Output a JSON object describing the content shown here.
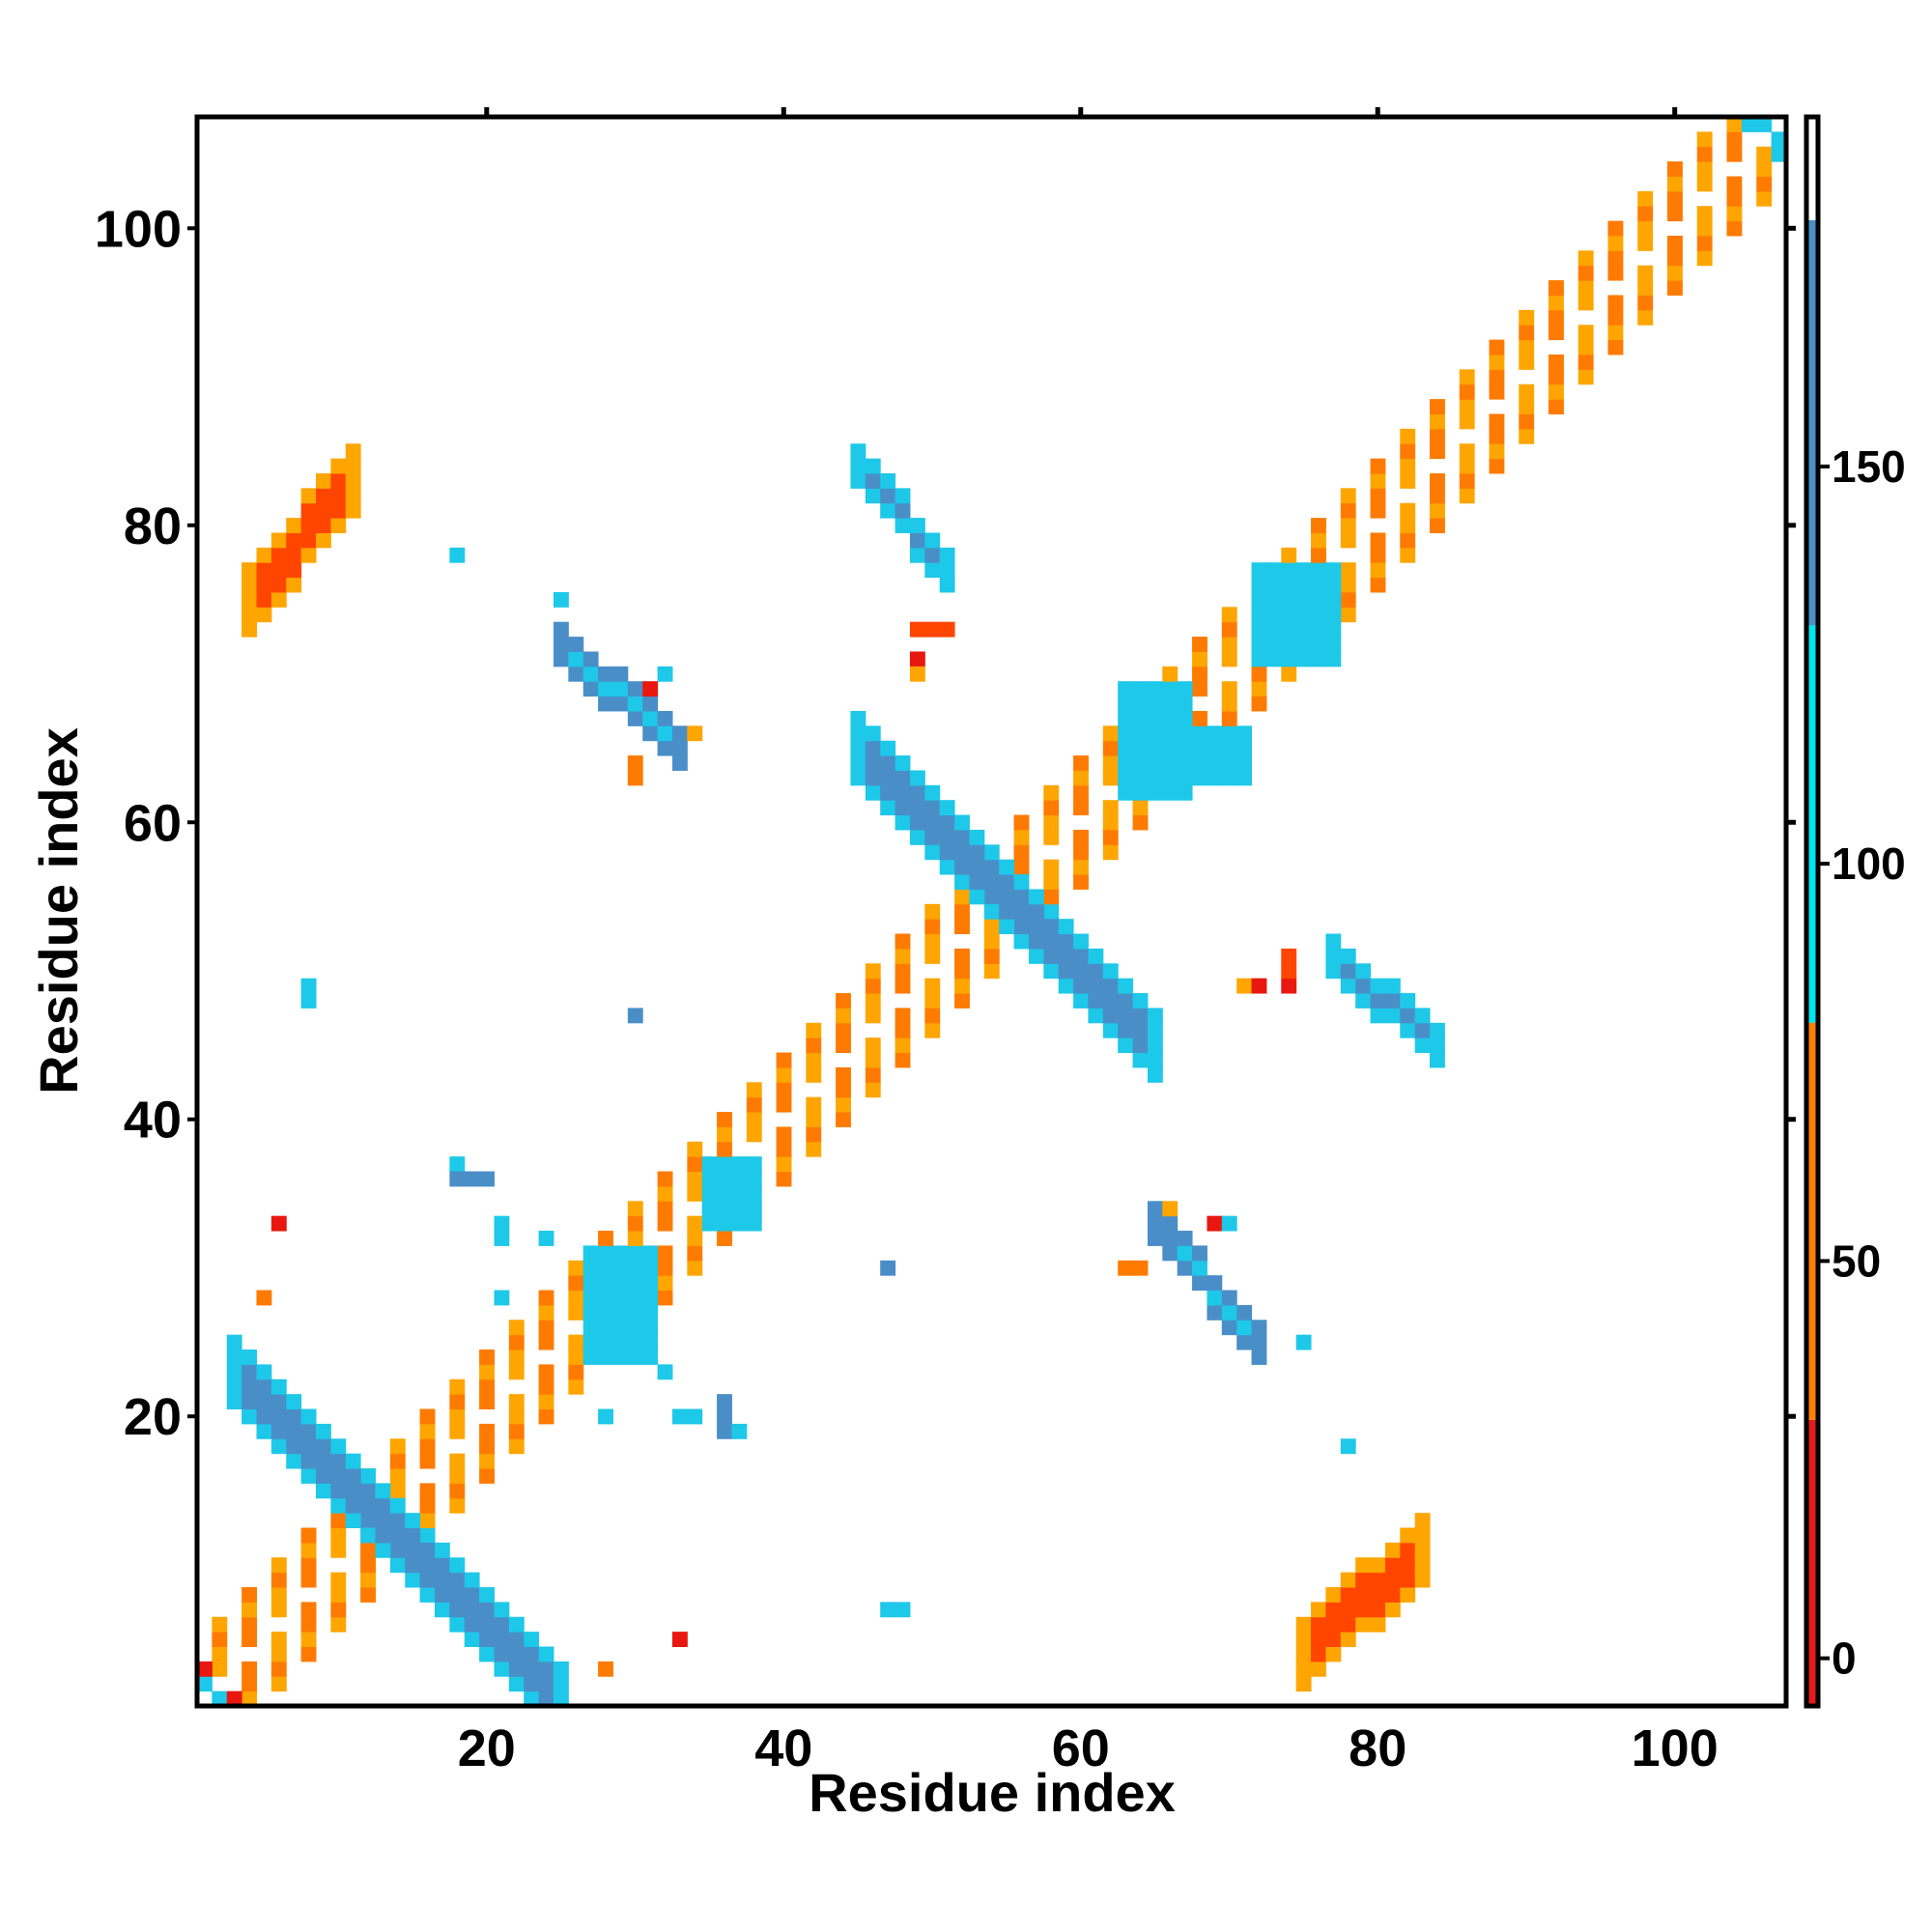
{
  "chart_data": {
    "type": "heatmap",
    "title": "",
    "xlabel": "Residue index",
    "ylabel": "Residue index",
    "xlim": [
      0.5,
      107.5
    ],
    "ylim": [
      0.5,
      107.5
    ],
    "x_ticks": [
      20,
      40,
      60,
      80,
      100
    ],
    "y_ticks": [
      20,
      40,
      60,
      80,
      100
    ],
    "grid": false,
    "colorbar": {
      "range": [
        -6,
        194
      ],
      "ticks": [
        0,
        50,
        100,
        150
      ],
      "bands": [
        {
          "from": -6,
          "to": 30,
          "color": "#e41a1c"
        },
        {
          "from": 30,
          "to": 80,
          "color": "#ff7f00"
        },
        {
          "from": 80,
          "to": 130,
          "color": "#00e5ee"
        },
        {
          "from": 130,
          "to": 181,
          "color": "#4a90c4"
        },
        {
          "from": 181,
          "to": 194,
          "color": "#ffffff"
        }
      ]
    },
    "palette": {
      "red": "#e8170f",
      "red_orange": "#ff4500",
      "orange": "#ff7a00",
      "amber": "#ffa500",
      "cyan": "#00e5ee",
      "sky": "#1ec8e8",
      "steel": "#4a8ec8"
    },
    "cell_groups": [
      {
        "name": "diagonal-band",
        "pattern": "checker",
        "x0": 1,
        "x1": 107,
        "offset_min": -4,
        "offset_max": 4,
        "colors": [
          "red",
          "orange",
          "red_orange",
          "amber"
        ]
      },
      {
        "name": "hairpin-antidiagonal-1",
        "pattern": "antidiagonal",
        "sum": 26,
        "x0": 3,
        "x1": 25,
        "width": 2,
        "color": "steel",
        "edge_color": "sky"
      },
      {
        "name": "hairpin-antidiagonal-2",
        "pattern": "antidiagonal",
        "sum": 110,
        "x0": 45,
        "x1": 65,
        "width": 2,
        "color": "steel",
        "edge_color": "sky"
      },
      {
        "name": "cluster-upper-left",
        "pattern": "band",
        "x0": 4,
        "x1": 11,
        "y0": 75,
        "y1": 83,
        "slope": 1,
        "width": 4,
        "color": "red_orange",
        "edge_color": "amber"
      },
      {
        "name": "cluster-lower-right",
        "pattern": "band",
        "x0": 75,
        "x1": 83,
        "y0": 4,
        "y1": 11,
        "slope": 1,
        "width": 4,
        "color": "red_orange",
        "edge_color": "amber"
      },
      {
        "name": "strand-pair-a",
        "pattern": "band",
        "x0": 45,
        "x1": 51,
        "y0": 77,
        "y1": 84,
        "slope": -1,
        "width": 3,
        "color": "steel",
        "edge_color": "sky"
      },
      {
        "name": "strand-pair-b",
        "pattern": "band",
        "x0": 77,
        "x1": 84,
        "y0": 45,
        "y1": 51,
        "slope": -1,
        "width": 3,
        "color": "steel",
        "edge_color": "sky"
      },
      {
        "name": "cluster-mid-left",
        "pattern": "band",
        "x0": 25,
        "x1": 33,
        "y0": 65,
        "y1": 72,
        "slope": -1,
        "width": 3,
        "color": "sky",
        "edge_color": "steel"
      },
      {
        "name": "cluster-mid-right",
        "pattern": "band",
        "x0": 65,
        "x1": 72,
        "y0": 25,
        "y1": 33,
        "slope": -1,
        "width": 3,
        "color": "sky",
        "edge_color": "steel"
      },
      {
        "name": "side-cluster-1",
        "pattern": "block",
        "x0": 63,
        "x1": 67,
        "y0": 62,
        "y1": 69,
        "color": "sky"
      },
      {
        "name": "side-cluster-2",
        "pattern": "block",
        "x0": 68,
        "x1": 71,
        "y0": 63,
        "y1": 66,
        "color": "sky"
      },
      {
        "name": "side-cluster-3",
        "pattern": "block",
        "x0": 72,
        "x1": 77,
        "y0": 71,
        "y1": 77,
        "color": "sky"
      },
      {
        "name": "side-cluster-4",
        "pattern": "block",
        "x0": 27,
        "x1": 31,
        "y0": 24,
        "y1": 31,
        "color": "sky"
      },
      {
        "name": "side-cluster-5",
        "pattern": "block",
        "x0": 35,
        "x1": 38,
        "y0": 33,
        "y1": 37,
        "color": "sky"
      },
      {
        "name": "scatter",
        "pattern": "points",
        "points": [
          [
            18,
            78,
            "sky"
          ],
          [
            25,
            75,
            "sky"
          ],
          [
            8,
            48,
            "sky"
          ],
          [
            8,
            49,
            "sky"
          ],
          [
            30,
            47,
            "steel"
          ],
          [
            18,
            37,
            "sky"
          ],
          [
            18,
            36,
            "steel"
          ],
          [
            19,
            36,
            "steel"
          ],
          [
            20,
            36,
            "steel"
          ],
          [
            21,
            32,
            "sky"
          ],
          [
            21,
            33,
            "sky"
          ],
          [
            24,
            32,
            "sky"
          ],
          [
            6,
            33,
            "red"
          ],
          [
            5,
            28,
            "orange"
          ],
          [
            21,
            28,
            "sky"
          ],
          [
            47,
            30,
            "steel"
          ],
          [
            28,
            20,
            "sky"
          ],
          [
            32,
            23,
            "sky"
          ],
          [
            33,
            20,
            "sky"
          ],
          [
            34,
            20,
            "sky"
          ],
          [
            36,
            20,
            "steel"
          ],
          [
            36,
            19,
            "steel"
          ],
          [
            36,
            21,
            "steel"
          ],
          [
            37,
            19,
            "sky"
          ],
          [
            47,
            7,
            "sky"
          ],
          [
            48,
            7,
            "sky"
          ],
          [
            33,
            5,
            "red"
          ],
          [
            28,
            3,
            "orange"
          ],
          [
            78,
            18,
            "sky"
          ],
          [
            75,
            25,
            "sky"
          ],
          [
            49,
            73,
            "red_orange"
          ],
          [
            50,
            73,
            "red_orange"
          ],
          [
            51,
            73,
            "red_orange"
          ],
          [
            49,
            71,
            "red"
          ],
          [
            49,
            70,
            "amber"
          ],
          [
            71,
            49,
            "amber"
          ],
          [
            72,
            49,
            "red"
          ],
          [
            74,
            49,
            "red"
          ],
          [
            74,
            50,
            "red_orange"
          ],
          [
            74,
            51,
            "red_orange"
          ],
          [
            66,
            34,
            "amber"
          ],
          [
            66,
            32,
            "steel"
          ],
          [
            69,
            33,
            "red"
          ],
          [
            70,
            33,
            "sky"
          ],
          [
            63,
            30,
            "orange"
          ],
          [
            64,
            30,
            "orange"
          ],
          [
            30,
            63,
            "orange"
          ],
          [
            30,
            64,
            "orange"
          ],
          [
            34,
            66,
            "amber"
          ],
          [
            32,
            70,
            "sky"
          ],
          [
            31,
            69,
            "red"
          ],
          [
            105,
            107,
            "sky"
          ],
          [
            106,
            107,
            "sky"
          ],
          [
            107,
            105,
            "sky"
          ],
          [
            107,
            106,
            "sky"
          ],
          [
            1,
            2,
            "sky"
          ],
          [
            2,
            1,
            "sky"
          ],
          [
            1,
            3,
            "red"
          ],
          [
            3,
            1,
            "red"
          ]
        ]
      }
    ]
  }
}
